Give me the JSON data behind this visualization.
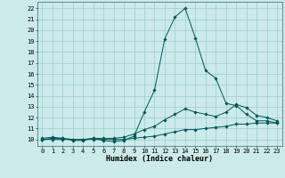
{
  "bg_color": "#cceaea",
  "grid_color": "#99cccc",
  "line_color": "#005555",
  "marker_color": "#005555",
  "xlabel": "Humidex (Indice chaleur)",
  "xlim": [
    -0.5,
    23.5
  ],
  "ylim": [
    9.4,
    22.6
  ],
  "xticks": [
    0,
    1,
    2,
    3,
    4,
    5,
    6,
    7,
    8,
    9,
    10,
    11,
    12,
    13,
    14,
    15,
    16,
    17,
    18,
    19,
    20,
    21,
    22,
    23
  ],
  "yticks": [
    10,
    11,
    12,
    13,
    14,
    15,
    16,
    17,
    18,
    19,
    20,
    21,
    22
  ],
  "line1_x": [
    0,
    1,
    2,
    3,
    4,
    5,
    6,
    7,
    8,
    9,
    10,
    11,
    12,
    13,
    14,
    15,
    16,
    17,
    18,
    19,
    20,
    21,
    22,
    23
  ],
  "line1_y": [
    10.1,
    10.2,
    10.1,
    9.9,
    9.9,
    10.1,
    9.9,
    9.8,
    9.9,
    10.3,
    12.5,
    14.5,
    19.2,
    21.2,
    22.0,
    19.3,
    16.3,
    15.6,
    13.3,
    13.1,
    12.3,
    11.7,
    11.7,
    11.5
  ],
  "line2_x": [
    0,
    1,
    2,
    3,
    4,
    5,
    6,
    7,
    8,
    9,
    10,
    11,
    12,
    13,
    14,
    15,
    16,
    17,
    18,
    19,
    20,
    21,
    22,
    23
  ],
  "line2_y": [
    10.0,
    10.1,
    10.1,
    10.0,
    10.0,
    10.1,
    10.1,
    10.1,
    10.2,
    10.5,
    10.9,
    11.2,
    11.8,
    12.3,
    12.8,
    12.5,
    12.3,
    12.1,
    12.5,
    13.2,
    12.9,
    12.2,
    12.0,
    11.7
  ],
  "line3_x": [
    0,
    1,
    2,
    3,
    4,
    5,
    6,
    7,
    8,
    9,
    10,
    11,
    12,
    13,
    14,
    15,
    16,
    17,
    18,
    19,
    20,
    21,
    22,
    23
  ],
  "line3_y": [
    10.0,
    10.0,
    10.0,
    10.0,
    10.0,
    10.0,
    10.0,
    10.0,
    10.0,
    10.1,
    10.2,
    10.3,
    10.5,
    10.7,
    10.9,
    10.9,
    11.0,
    11.1,
    11.2,
    11.4,
    11.4,
    11.5,
    11.5,
    11.5
  ],
  "axis_fontsize": 5.5,
  "tick_fontsize": 5.0,
  "xlabel_fontsize": 6.0
}
